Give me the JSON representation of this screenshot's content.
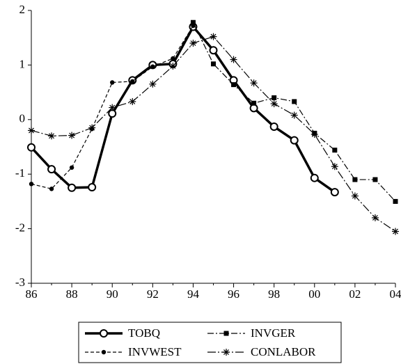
{
  "chart_data": {
    "type": "line",
    "categories": [
      "86",
      null,
      "88",
      null,
      "90",
      null,
      "92",
      null,
      "94",
      null,
      "96",
      null,
      "98",
      null,
      "00",
      null,
      "02",
      null,
      "04"
    ],
    "ylim": [
      -3,
      2
    ],
    "yticks": [
      -3,
      -2,
      -1,
      0,
      1,
      2
    ],
    "series": [
      {
        "name": "TOBQ",
        "color": "#000000",
        "width": 3.5,
        "dash": "none",
        "marker": "circle",
        "values": [
          -0.51,
          -0.91,
          -1.25,
          -1.24,
          0.11,
          0.72,
          1.0,
          1.02,
          1.7,
          1.27,
          0.72,
          0.21,
          -0.13,
          -0.38,
          -1.07,
          -1.33,
          null,
          null,
          null
        ]
      },
      {
        "name": "INVGER",
        "color": "#000000",
        "width": 1.2,
        "dash": "9 3 2 3",
        "marker": "square",
        "values": [
          null,
          null,
          null,
          null,
          null,
          null,
          null,
          null,
          1.78,
          1.02,
          0.64,
          0.3,
          0.4,
          0.33,
          -0.25,
          -0.56,
          -1.1,
          -1.1,
          -1.5
        ]
      },
      {
        "name": "INVWEST",
        "color": "#000000",
        "width": 1.2,
        "dash": "5 3",
        "marker": "dot",
        "values": [
          -1.18,
          -1.27,
          -0.88,
          -0.17,
          0.68,
          0.7,
          0.97,
          1.12,
          1.72,
          null,
          null,
          null,
          null,
          null,
          null,
          null,
          null,
          null,
          null
        ]
      },
      {
        "name": "CONLABOR",
        "color": "#000000",
        "width": 1.2,
        "dash": "12 3 2 3",
        "marker": "star",
        "values": [
          -0.2,
          -0.3,
          -0.29,
          -0.15,
          0.22,
          0.33,
          0.65,
          0.98,
          1.4,
          1.52,
          1.1,
          0.67,
          0.29,
          0.08,
          -0.27,
          -0.86,
          -1.4,
          -1.8,
          -2.05
        ]
      }
    ]
  }
}
